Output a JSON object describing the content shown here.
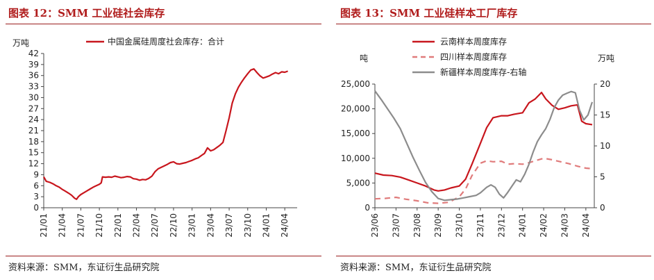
{
  "colors": {
    "title": "#b01c1c",
    "rule": "#9a1c1c",
    "red": "#c8161d",
    "pink": "#e07b7b",
    "gray": "#8c8c8c"
  },
  "left": {
    "title": "图表 12：SMM 工业硅社会库存",
    "source": "资料来源：SMM，东证衍生品研究院"
  },
  "right": {
    "title": "图表 13：SMM 工业硅样本工厂库存",
    "source": "资料来源：SMM，东证衍生品研究院"
  },
  "chart_data": [
    {
      "type": "line",
      "ylabel": "万吨",
      "ylim": [
        0,
        42
      ],
      "yticks": [
        0,
        3,
        6,
        9,
        12,
        15,
        18,
        21,
        24,
        27,
        30,
        33,
        36,
        39,
        42
      ],
      "xlim": [
        0,
        41
      ],
      "xticks": [
        {
          "label": "21/01",
          "x": 0
        },
        {
          "label": "21/04",
          "x": 3
        },
        {
          "label": "21/07",
          "x": 6
        },
        {
          "label": "21/10",
          "x": 9
        },
        {
          "label": "22/01",
          "x": 12
        },
        {
          "label": "22/04",
          "x": 15
        },
        {
          "label": "22/07",
          "x": 18
        },
        {
          "label": "22/10",
          "x": 21
        },
        {
          "label": "23/01",
          "x": 24
        },
        {
          "label": "23/04",
          "x": 27
        },
        {
          "label": "23/07",
          "x": 30
        },
        {
          "label": "23/10",
          "x": 33
        },
        {
          "label": "24/01",
          "x": 36
        },
        {
          "label": "24/04",
          "x": 39
        }
      ],
      "legend_position": "top",
      "series": [
        {
          "name": "中国金属硅周度社会库存：合计",
          "color": "#c8161d",
          "style": "solid",
          "points": [
            [
              0,
              8.4
            ],
            [
              0.4,
              7.2
            ],
            [
              1,
              6.9
            ],
            [
              1.5,
              6.5
            ],
            [
              2,
              6.0
            ],
            [
              2.5,
              5.6
            ],
            [
              3,
              5.0
            ],
            [
              3.5,
              4.5
            ],
            [
              4,
              4.0
            ],
            [
              4.5,
              3.4
            ],
            [
              5,
              2.6
            ],
            [
              5.3,
              2.3
            ],
            [
              5.6,
              3.0
            ],
            [
              6,
              3.6
            ],
            [
              6.5,
              4.1
            ],
            [
              7,
              4.6
            ],
            [
              7.5,
              5.1
            ],
            [
              8,
              5.6
            ],
            [
              8.5,
              6.0
            ],
            [
              9,
              6.4
            ],
            [
              9.3,
              6.8
            ],
            [
              9.5,
              8.4
            ],
            [
              10,
              8.3
            ],
            [
              10.5,
              8.4
            ],
            [
              11,
              8.3
            ],
            [
              11.5,
              8.6
            ],
            [
              12,
              8.4
            ],
            [
              12.5,
              8.2
            ],
            [
              13,
              8.3
            ],
            [
              13.5,
              8.5
            ],
            [
              14,
              8.4
            ],
            [
              14.5,
              7.9
            ],
            [
              15,
              7.8
            ],
            [
              15.5,
              7.5
            ],
            [
              16,
              7.7
            ],
            [
              16.5,
              7.6
            ],
            [
              17,
              8.0
            ],
            [
              17.5,
              8.6
            ],
            [
              18,
              9.8
            ],
            [
              18.5,
              10.6
            ],
            [
              19,
              11.0
            ],
            [
              19.5,
              11.4
            ],
            [
              20,
              11.8
            ],
            [
              20.5,
              12.3
            ],
            [
              21,
              12.5
            ],
            [
              21.5,
              12.0
            ],
            [
              22,
              11.9
            ],
            [
              22.5,
              12.1
            ],
            [
              23,
              12.3
            ],
            [
              23.5,
              12.6
            ],
            [
              24,
              12.9
            ],
            [
              24.5,
              13.3
            ],
            [
              25,
              13.6
            ],
            [
              25.5,
              14.2
            ],
            [
              26,
              14.8
            ],
            [
              26.5,
              16.3
            ],
            [
              27,
              15.5
            ],
            [
              27.5,
              15.8
            ],
            [
              28,
              16.4
            ],
            [
              28.5,
              17.0
            ],
            [
              29,
              17.8
            ],
            [
              29.5,
              21.0
            ],
            [
              30,
              24.5
            ],
            [
              30.5,
              28.5
            ],
            [
              31,
              31.0
            ],
            [
              31.5,
              32.8
            ],
            [
              32,
              34.2
            ],
            [
              32.5,
              35.4
            ],
            [
              33,
              36.5
            ],
            [
              33.5,
              37.5
            ],
            [
              34,
              37.8
            ],
            [
              34.5,
              36.8
            ],
            [
              35,
              35.9
            ],
            [
              35.5,
              35.3
            ],
            [
              36,
              35.6
            ],
            [
              36.5,
              35.9
            ],
            [
              37,
              36.4
            ],
            [
              37.5,
              36.8
            ],
            [
              38,
              36.5
            ],
            [
              38.5,
              37.0
            ],
            [
              39,
              36.9
            ],
            [
              39.5,
              37.2
            ]
          ]
        }
      ]
    },
    {
      "type": "line",
      "ylabel": "吨",
      "y2label": "万吨",
      "ylim": [
        0,
        25000
      ],
      "yticks": [
        0,
        5000,
        10000,
        15000,
        20000,
        25000
      ],
      "ytick_labels": [
        "0",
        "5,000",
        "10,000",
        "15,000",
        "20,000",
        "25,000"
      ],
      "y2lim": [
        0,
        20
      ],
      "y2ticks": [
        0,
        5,
        10,
        15,
        20
      ],
      "xlim": [
        0,
        10.4
      ],
      "xticks": [
        {
          "label": "23/06",
          "x": 0
        },
        {
          "label": "23/07",
          "x": 1
        },
        {
          "label": "23/08",
          "x": 2
        },
        {
          "label": "23/09",
          "x": 3
        },
        {
          "label": "23/10",
          "x": 4
        },
        {
          "label": "23/11",
          "x": 5
        },
        {
          "label": "23/12",
          "x": 6
        },
        {
          "label": "24/01",
          "x": 7
        },
        {
          "label": "24/02",
          "x": 8
        },
        {
          "label": "24/03",
          "x": 9
        },
        {
          "label": "24/04",
          "x": 10
        }
      ],
      "legend_position": "top",
      "series": [
        {
          "name": "云南样本周度库存",
          "color": "#c8161d",
          "style": "solid",
          "axis": "left",
          "points": [
            [
              0,
              7000
            ],
            [
              0.4,
              6600
            ],
            [
              0.8,
              6500
            ],
            [
              1.2,
              6200
            ],
            [
              1.6,
              5600
            ],
            [
              2,
              5000
            ],
            [
              2.4,
              4400
            ],
            [
              2.8,
              3600
            ],
            [
              3,
              3400
            ],
            [
              3.3,
              3600
            ],
            [
              3.6,
              4000
            ],
            [
              4,
              4400
            ],
            [
              4.3,
              5800
            ],
            [
              4.6,
              8800
            ],
            [
              5,
              13000
            ],
            [
              5.3,
              16200
            ],
            [
              5.6,
              18200
            ],
            [
              6,
              18600
            ],
            [
              6.3,
              18600
            ],
            [
              6.6,
              18900
            ],
            [
              7,
              19200
            ],
            [
              7.3,
              21200
            ],
            [
              7.6,
              22000
            ],
            [
              7.9,
              23300
            ],
            [
              8.1,
              22000
            ],
            [
              8.4,
              20700
            ],
            [
              8.7,
              19900
            ],
            [
              9,
              20200
            ],
            [
              9.3,
              20600
            ],
            [
              9.6,
              20800
            ],
            [
              9.8,
              17500
            ],
            [
              10,
              17000
            ],
            [
              10.3,
              16800
            ]
          ]
        },
        {
          "name": "四川样本周度库存",
          "color": "#e07b7b",
          "style": "dashed",
          "axis": "left",
          "points": [
            [
              0,
              1800
            ],
            [
              0.5,
              1900
            ],
            [
              1,
              2100
            ],
            [
              1.5,
              1700
            ],
            [
              2,
              1400
            ],
            [
              2.5,
              1000
            ],
            [
              3,
              900
            ],
            [
              3.5,
              1100
            ],
            [
              4,
              2200
            ],
            [
              4.3,
              3800
            ],
            [
              4.6,
              6500
            ],
            [
              5,
              9000
            ],
            [
              5.3,
              9500
            ],
            [
              5.6,
              9300
            ],
            [
              6,
              9400
            ],
            [
              6.3,
              8800
            ],
            [
              6.6,
              8900
            ],
            [
              7,
              8800
            ],
            [
              7.3,
              9100
            ],
            [
              7.6,
              9500
            ],
            [
              8,
              10000
            ],
            [
              8.4,
              9700
            ],
            [
              8.8,
              9300
            ],
            [
              9.2,
              8900
            ],
            [
              9.6,
              8400
            ],
            [
              10,
              8000
            ],
            [
              10.3,
              7900
            ]
          ]
        },
        {
          "name": "新疆样本周度库存-右轴",
          "color": "#8c8c8c",
          "style": "solid",
          "axis": "right",
          "points": [
            [
              0,
              18.9
            ],
            [
              0.3,
              17.5
            ],
            [
              0.6,
              16.0
            ],
            [
              0.9,
              14.5
            ],
            [
              1.2,
              12.8
            ],
            [
              1.5,
              10.5
            ],
            [
              1.8,
              8.2
            ],
            [
              2.1,
              6.1
            ],
            [
              2.4,
              4.1
            ],
            [
              2.7,
              2.6
            ],
            [
              3,
              1.5
            ],
            [
              3.3,
              1.2
            ],
            [
              3.6,
              1.3
            ],
            [
              3.9,
              1.4
            ],
            [
              4.2,
              1.6
            ],
            [
              4.5,
              1.8
            ],
            [
              4.8,
              2.0
            ],
            [
              5,
              2.4
            ],
            [
              5.3,
              3.3
            ],
            [
              5.5,
              3.7
            ],
            [
              5.7,
              3.3
            ],
            [
              5.9,
              2.2
            ],
            [
              6.1,
              1.6
            ],
            [
              6.3,
              2.5
            ],
            [
              6.5,
              3.5
            ],
            [
              6.7,
              4.5
            ],
            [
              6.9,
              4.2
            ],
            [
              7.1,
              5.4
            ],
            [
              7.3,
              7.0
            ],
            [
              7.5,
              9.0
            ],
            [
              7.7,
              10.7
            ],
            [
              7.9,
              11.8
            ],
            [
              8.1,
              12.8
            ],
            [
              8.3,
              14.3
            ],
            [
              8.5,
              16.2
            ],
            [
              8.7,
              17.4
            ],
            [
              8.9,
              18.2
            ],
            [
              9.1,
              18.5
            ],
            [
              9.3,
              18.8
            ],
            [
              9.5,
              18.6
            ],
            [
              9.7,
              15.8
            ],
            [
              9.9,
              14.2
            ],
            [
              10.1,
              15.0
            ],
            [
              10.3,
              17.1
            ]
          ]
        }
      ]
    }
  ]
}
